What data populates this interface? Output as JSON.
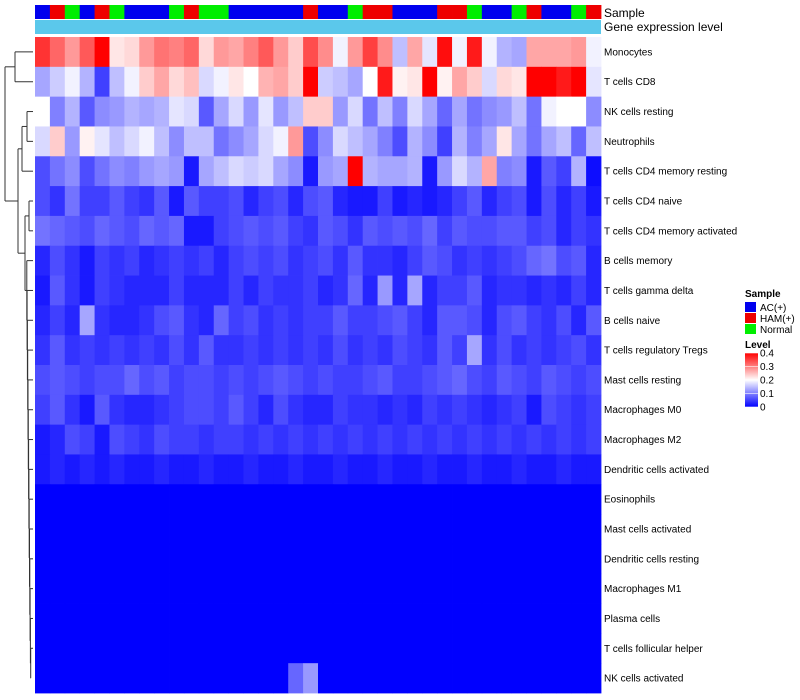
{
  "chart_data": {
    "type": "heatmap",
    "title": "",
    "annotation_titles": [
      "Sample",
      "Gene expression level"
    ],
    "rows": [
      "Monocytes",
      "T cells CD8",
      "NK cells resting",
      "Neutrophils",
      "T cells CD4 memory resting",
      "T cells CD4 naive",
      "T cells CD4 memory activated",
      "B cells memory",
      "T cells gamma delta",
      "B cells naive",
      "T cells regulatory  Tregs",
      "Mast cells resting",
      "Macrophages M0",
      "Macrophages M2",
      "Dendritic cells activated",
      "Eosinophils",
      "Mast cells activated",
      "Dendritic cells resting",
      "Macrophages M1",
      "Plasma cells",
      "T cells follicular helper",
      "NK cells activated"
    ],
    "sample_groups": [
      "AC(+)",
      "HAM(+)",
      "Normal",
      "AC(+)",
      "HAM(+)",
      "Normal",
      "AC(+)",
      "AC(+)",
      "AC(+)",
      "Normal",
      "HAM(+)",
      "Normal",
      "Normal",
      "AC(+)",
      "AC(+)",
      "AC(+)",
      "AC(+)",
      "AC(+)",
      "HAM(+)",
      "AC(+)",
      "AC(+)",
      "Normal",
      "HAM(+)",
      "HAM(+)",
      "AC(+)",
      "AC(+)",
      "AC(+)",
      "HAM(+)",
      "HAM(+)",
      "Normal",
      "AC(+)",
      "AC(+)",
      "Normal",
      "HAM(+)",
      "AC(+)",
      "AC(+)",
      "Normal",
      "HAM(+)"
    ],
    "values": [
      [
        0.36,
        0.32,
        0.28,
        0.33,
        0.4,
        0.22,
        0.23,
        0.28,
        0.31,
        0.3,
        0.32,
        0.23,
        0.28,
        0.27,
        0.3,
        0.33,
        0.28,
        0.24,
        0.34,
        0.29,
        0.19,
        0.28,
        0.35,
        0.29,
        0.15,
        0.27,
        0.18,
        0.39,
        0.19,
        0.38,
        0.19,
        0.14,
        0.13,
        0.27,
        0.27,
        0.27,
        0.28,
        0.19
      ],
      [
        0.13,
        0.16,
        0.19,
        0.14,
        0.05,
        0.15,
        0.19,
        0.24,
        0.27,
        0.23,
        0.25,
        0.17,
        0.19,
        0.22,
        0.2,
        0.26,
        0.27,
        0.24,
        0.4,
        0.16,
        0.15,
        0.13,
        0.2,
        0.38,
        0.21,
        0.22,
        0.41,
        0.21,
        0.27,
        0.24,
        0.17,
        0.23,
        0.22,
        0.4,
        0.43,
        0.38,
        0.4,
        0.18
      ],
      [
        0.2,
        0.1,
        0.14,
        0.07,
        0.11,
        0.12,
        0.14,
        0.13,
        0.14,
        0.18,
        0.17,
        0.07,
        0.13,
        0.17,
        0.12,
        0.18,
        0.12,
        0.15,
        0.24,
        0.24,
        0.12,
        0.17,
        0.09,
        0.15,
        0.1,
        0.17,
        0.13,
        0.08,
        0.13,
        0.09,
        0.11,
        0.12,
        0.15,
        0.09,
        0.19,
        0.2,
        0.2,
        0.11
      ],
      [
        0.17,
        0.24,
        0.12,
        0.21,
        0.18,
        0.15,
        0.17,
        0.19,
        0.15,
        0.11,
        0.15,
        0.15,
        0.09,
        0.11,
        0.13,
        0.17,
        0.19,
        0.28,
        0.06,
        0.11,
        0.17,
        0.15,
        0.13,
        0.1,
        0.06,
        0.14,
        0.11,
        0.05,
        0.14,
        0.1,
        0.13,
        0.22,
        0.13,
        0.09,
        0.13,
        0.15,
        0.08,
        0.15
      ],
      [
        0.06,
        0.09,
        0.11,
        0.06,
        0.09,
        0.11,
        0.1,
        0.12,
        0.13,
        0.12,
        0.02,
        0.13,
        0.15,
        0.17,
        0.16,
        0.17,
        0.13,
        0.11,
        0.02,
        0.12,
        0.13,
        0.4,
        0.14,
        0.13,
        0.13,
        0.14,
        0.02,
        0.12,
        0.17,
        0.14,
        0.27,
        0.1,
        0.11,
        0.02,
        0.07,
        0.05,
        0.14,
        0.01
      ],
      [
        0.06,
        0.04,
        0.09,
        0.05,
        0.05,
        0.07,
        0.05,
        0.04,
        0.07,
        0.02,
        0.07,
        0.05,
        0.05,
        0.06,
        0.03,
        0.05,
        0.06,
        0.03,
        0.06,
        0.07,
        0.03,
        0.02,
        0.02,
        0.05,
        0.02,
        0.03,
        0.02,
        0.03,
        0.05,
        0.07,
        0.03,
        0.05,
        0.06,
        0.02,
        0.06,
        0.03,
        0.05,
        0.02
      ],
      [
        0.09,
        0.08,
        0.07,
        0.06,
        0.08,
        0.07,
        0.06,
        0.08,
        0.07,
        0.08,
        0.02,
        0.02,
        0.05,
        0.06,
        0.07,
        0.06,
        0.07,
        0.05,
        0.04,
        0.07,
        0.06,
        0.04,
        0.07,
        0.06,
        0.07,
        0.06,
        0.08,
        0.05,
        0.07,
        0.06,
        0.06,
        0.07,
        0.07,
        0.05,
        0.06,
        0.03,
        0.05,
        0.04
      ],
      [
        0.03,
        0.06,
        0.04,
        0.02,
        0.05,
        0.04,
        0.05,
        0.03,
        0.04,
        0.05,
        0.04,
        0.05,
        0.03,
        0.05,
        0.06,
        0.05,
        0.06,
        0.04,
        0.05,
        0.06,
        0.04,
        0.07,
        0.04,
        0.04,
        0.03,
        0.05,
        0.07,
        0.06,
        0.04,
        0.05,
        0.04,
        0.05,
        0.06,
        0.08,
        0.09,
        0.06,
        0.07,
        0.03
      ],
      [
        0.02,
        0.07,
        0.04,
        0.02,
        0.05,
        0.04,
        0.03,
        0.03,
        0.03,
        0.05,
        0.03,
        0.03,
        0.03,
        0.05,
        0.03,
        0.05,
        0.04,
        0.04,
        0.05,
        0.03,
        0.04,
        0.08,
        0.03,
        0.12,
        0.03,
        0.13,
        0.03,
        0.05,
        0.05,
        0.07,
        0.03,
        0.04,
        0.04,
        0.03,
        0.04,
        0.03,
        0.05,
        0.03
      ],
      [
        0.03,
        0.05,
        0.03,
        0.13,
        0.04,
        0.03,
        0.03,
        0.04,
        0.06,
        0.07,
        0.04,
        0.03,
        0.08,
        0.05,
        0.06,
        0.04,
        0.05,
        0.04,
        0.05,
        0.05,
        0.07,
        0.05,
        0.05,
        0.06,
        0.07,
        0.05,
        0.03,
        0.07,
        0.07,
        0.06,
        0.03,
        0.06,
        0.07,
        0.05,
        0.04,
        0.06,
        0.03,
        0.07
      ],
      [
        0.04,
        0.07,
        0.04,
        0.05,
        0.04,
        0.05,
        0.04,
        0.05,
        0.04,
        0.06,
        0.04,
        0.07,
        0.04,
        0.04,
        0.05,
        0.04,
        0.05,
        0.04,
        0.05,
        0.04,
        0.06,
        0.04,
        0.05,
        0.04,
        0.06,
        0.05,
        0.04,
        0.07,
        0.05,
        0.13,
        0.04,
        0.06,
        0.04,
        0.05,
        0.04,
        0.05,
        0.06,
        0.04
      ],
      [
        0.06,
        0.07,
        0.06,
        0.05,
        0.06,
        0.06,
        0.08,
        0.06,
        0.07,
        0.05,
        0.06,
        0.06,
        0.05,
        0.06,
        0.05,
        0.06,
        0.07,
        0.06,
        0.05,
        0.06,
        0.05,
        0.05,
        0.06,
        0.07,
        0.05,
        0.05,
        0.06,
        0.07,
        0.08,
        0.06,
        0.05,
        0.07,
        0.06,
        0.05,
        0.07,
        0.06,
        0.05,
        0.06
      ],
      [
        0.05,
        0.07,
        0.04,
        0.02,
        0.07,
        0.04,
        0.03,
        0.03,
        0.04,
        0.05,
        0.06,
        0.06,
        0.05,
        0.07,
        0.05,
        0.03,
        0.06,
        0.04,
        0.03,
        0.03,
        0.05,
        0.04,
        0.04,
        0.03,
        0.04,
        0.03,
        0.05,
        0.04,
        0.05,
        0.04,
        0.03,
        0.04,
        0.05,
        0.02,
        0.06,
        0.05,
        0.04,
        0.05
      ],
      [
        0.02,
        0.03,
        0.06,
        0.05,
        0.02,
        0.06,
        0.05,
        0.04,
        0.06,
        0.05,
        0.05,
        0.04,
        0.05,
        0.05,
        0.04,
        0.05,
        0.04,
        0.05,
        0.04,
        0.05,
        0.04,
        0.05,
        0.04,
        0.05,
        0.04,
        0.05,
        0.04,
        0.05,
        0.04,
        0.05,
        0.04,
        0.05,
        0.04,
        0.05,
        0.04,
        0.05,
        0.04,
        0.05
      ],
      [
        0.02,
        0.03,
        0.02,
        0.03,
        0.02,
        0.03,
        0.02,
        0.02,
        0.03,
        0.02,
        0.02,
        0.03,
        0.02,
        0.02,
        0.03,
        0.02,
        0.02,
        0.03,
        0.02,
        0.02,
        0.03,
        0.02,
        0.02,
        0.03,
        0.02,
        0.02,
        0.03,
        0.02,
        0.02,
        0.03,
        0.02,
        0.02,
        0.03,
        0.02,
        0.02,
        0.03,
        0.02,
        0.02
      ],
      [
        0.0,
        0.0,
        0.0,
        0.0,
        0.0,
        0.0,
        0.0,
        0.0,
        0.0,
        0.0,
        0.0,
        0.0,
        0.0,
        0.0,
        0.0,
        0.0,
        0.0,
        0.0,
        0.0,
        0.0,
        0.0,
        0.0,
        0.0,
        0.0,
        0.0,
        0.0,
        0.0,
        0.0,
        0.0,
        0.0,
        0.0,
        0.0,
        0.0,
        0.0,
        0.0,
        0.0,
        0.0,
        0.0
      ],
      [
        0.0,
        0.0,
        0.0,
        0.0,
        0.0,
        0.0,
        0.0,
        0.0,
        0.0,
        0.0,
        0.0,
        0.0,
        0.0,
        0.0,
        0.0,
        0.0,
        0.0,
        0.0,
        0.0,
        0.0,
        0.0,
        0.0,
        0.0,
        0.0,
        0.0,
        0.0,
        0.0,
        0.0,
        0.0,
        0.0,
        0.0,
        0.0,
        0.0,
        0.0,
        0.0,
        0.0,
        0.0,
        0.0
      ],
      [
        0.0,
        0.0,
        0.0,
        0.0,
        0.0,
        0.0,
        0.0,
        0.0,
        0.0,
        0.0,
        0.0,
        0.0,
        0.0,
        0.0,
        0.0,
        0.0,
        0.0,
        0.0,
        0.0,
        0.0,
        0.0,
        0.0,
        0.0,
        0.0,
        0.0,
        0.0,
        0.0,
        0.0,
        0.0,
        0.0,
        0.0,
        0.0,
        0.0,
        0.0,
        0.0,
        0.0,
        0.0,
        0.0
      ],
      [
        0.0,
        0.0,
        0.0,
        0.0,
        0.0,
        0.0,
        0.0,
        0.0,
        0.0,
        0.0,
        0.0,
        0.0,
        0.0,
        0.0,
        0.0,
        0.0,
        0.0,
        0.0,
        0.0,
        0.0,
        0.0,
        0.0,
        0.0,
        0.0,
        0.0,
        0.0,
        0.0,
        0.0,
        0.0,
        0.0,
        0.0,
        0.0,
        0.0,
        0.0,
        0.0,
        0.0,
        0.0,
        0.0
      ],
      [
        0.0,
        0.0,
        0.0,
        0.0,
        0.0,
        0.0,
        0.0,
        0.0,
        0.0,
        0.0,
        0.0,
        0.0,
        0.0,
        0.0,
        0.0,
        0.0,
        0.0,
        0.0,
        0.0,
        0.0,
        0.0,
        0.0,
        0.0,
        0.0,
        0.0,
        0.0,
        0.0,
        0.0,
        0.0,
        0.0,
        0.0,
        0.0,
        0.0,
        0.0,
        0.0,
        0.0,
        0.0,
        0.0
      ],
      [
        0.0,
        0.0,
        0.0,
        0.0,
        0.0,
        0.0,
        0.0,
        0.0,
        0.0,
        0.0,
        0.0,
        0.0,
        0.0,
        0.0,
        0.0,
        0.0,
        0.0,
        0.0,
        0.0,
        0.0,
        0.0,
        0.0,
        0.0,
        0.0,
        0.0,
        0.0,
        0.0,
        0.0,
        0.0,
        0.0,
        0.0,
        0.0,
        0.0,
        0.0,
        0.0,
        0.0,
        0.0,
        0.0
      ],
      [
        0.0,
        0.0,
        0.0,
        0.0,
        0.0,
        0.0,
        0.0,
        0.0,
        0.0,
        0.0,
        0.0,
        0.0,
        0.0,
        0.0,
        0.0,
        0.0,
        0.0,
        0.08,
        0.12,
        0.0,
        0.0,
        0.0,
        0.0,
        0.0,
        0.0,
        0.0,
        0.0,
        0.0,
        0.0,
        0.0,
        0.0,
        0.0,
        0.0,
        0.0,
        0.0,
        0.0,
        0.0,
        0.0
      ]
    ],
    "legend_sample": {
      "title": "Sample",
      "entries": [
        {
          "label": "AC(+)",
          "color": "#0000ee"
        },
        {
          "label": "HAM(+)",
          "color": "#ee0000"
        },
        {
          "label": "Normal",
          "color": "#00ee00"
        }
      ]
    },
    "legend_level": {
      "title": "Level",
      "ticks": [
        "0.4",
        "0.3",
        "0.2",
        "0.1",
        "0"
      ],
      "tick_values": [
        0.4,
        0.3,
        0.2,
        0.1,
        0.0
      ],
      "range": [
        0,
        0.4
      ]
    },
    "colors": {
      "low": "#0000ff",
      "mid": "#ffffff",
      "high": "#ff0000",
      "expression_bar": "#5bc8eb"
    }
  }
}
